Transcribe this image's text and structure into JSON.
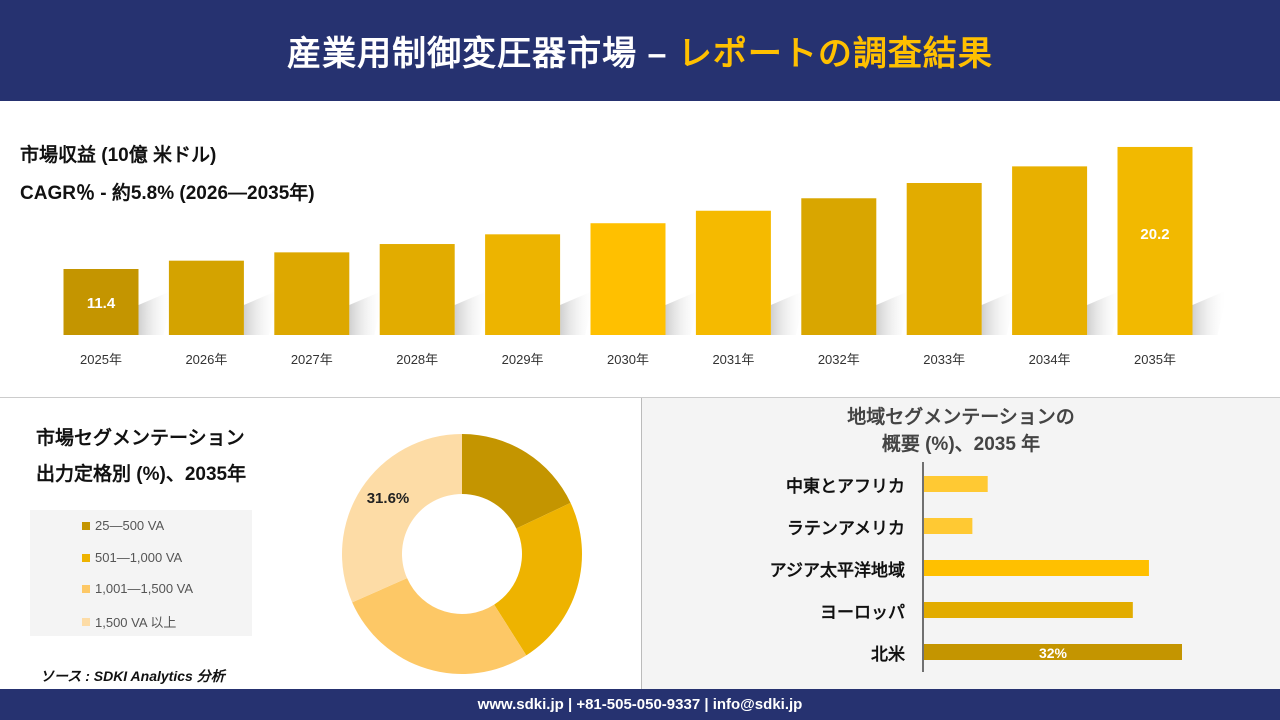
{
  "header": {
    "title_main": "産業用制御変圧器市場 –",
    "title_highlight": "レポートの調査結果"
  },
  "revenue": {
    "label": "市場収益 (10億 米ドル)",
    "cagr": "CAGR％ - 約5.8% (2026—2035年)"
  },
  "chart_data": [
    {
      "type": "bar",
      "categories": [
        "2025年",
        "2026年",
        "2027年",
        "2028年",
        "2029年",
        "2030年",
        "2031年",
        "2032年",
        "2033年",
        "2034年",
        "2035年"
      ],
      "values": [
        11.4,
        12.0,
        12.6,
        13.2,
        13.9,
        14.7,
        15.6,
        16.5,
        17.6,
        18.8,
        20.2
      ],
      "data_labels": {
        "0": "11.4",
        "10": "20.2"
      },
      "colors": [
        "#C49500",
        "#D4A300",
        "#DDA800",
        "#E2AC00",
        "#EDB400",
        "#FFC000",
        "#F5BA00",
        "#D9A600",
        "#E2AC00",
        "#E8B000",
        "#F2B900"
      ]
    },
    {
      "type": "pie",
      "title": "市場セグメンテーション 出力定格別 (%)、2035年",
      "categories": [
        "25—500 VA",
        "501—1,000 VA",
        "1,001—1,500 VA",
        "1,500 VA 以上"
      ],
      "values": [
        18,
        23,
        27.4,
        31.6
      ],
      "data_labels": {
        "3": "31.6%"
      },
      "colors": [
        "#C49500",
        "#EEB300",
        "#FDC866",
        "#FDDCA6"
      ]
    },
    {
      "type": "bar",
      "orientation": "horizontal",
      "title": "地域セグメンテーションの 概要 (%)、2035 年",
      "categories": [
        "中東とアフリカ",
        "ラテンアメリカ",
        "アジア太平洋地域",
        "ヨーロッパ",
        "北米"
      ],
      "values": [
        7.9,
        6.0,
        27.9,
        25.9,
        32
      ],
      "data_labels": {
        "4": "32%"
      },
      "colors": [
        "#FFC933",
        "#FFC933",
        "#FFC000",
        "#E2AC00",
        "#C49500"
      ]
    }
  ],
  "segment": {
    "title_line1": "市場セグメンテーション",
    "title_line2": "出力定格別 (%)、2035年"
  },
  "region": {
    "title_line1": "地域セグメンテーションの",
    "title_line2": "概要 (%)、2035 年"
  },
  "source": "ソース : SDKI Analytics 分析",
  "footer": "www.sdki.jp | +81-505-050-9337 | info@sdki.jp"
}
